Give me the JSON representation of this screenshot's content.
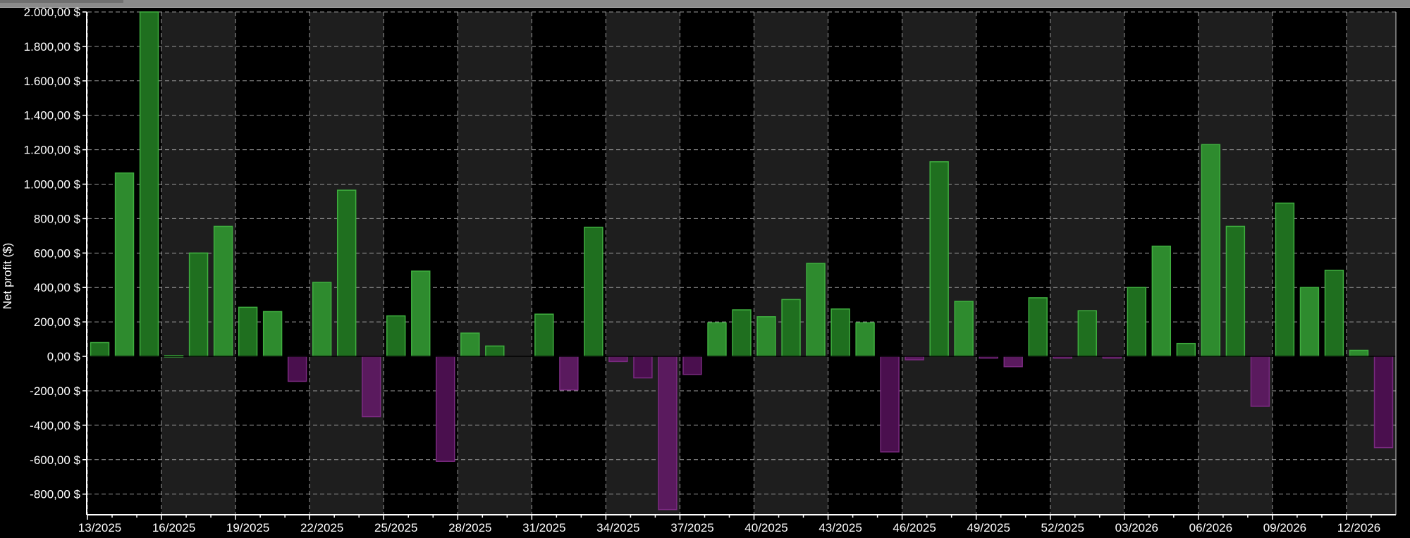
{
  "colors": {
    "background": "#000000",
    "band_alt": "#1e1e1e",
    "gridline": "#9a9a9a",
    "positive_fill": "#2e8b2e",
    "positive_fill_alt": "#1f6f1f",
    "positive_stroke": "#3fae3f",
    "negative_fill": "#5a1a5e",
    "negative_fill_alt": "#4a0f4e",
    "negative_stroke": "#7a2a80",
    "text": "#ffffff"
  },
  "chart_data": {
    "type": "bar",
    "title": "",
    "ylabel": "Net profit ($)",
    "xlabel": "",
    "ylim": [
      -920,
      2000
    ],
    "grid": true,
    "legend": "none",
    "yticks": [
      2000,
      1800,
      1600,
      1400,
      1200,
      1000,
      800,
      600,
      400,
      200,
      0,
      -200,
      -400,
      -600,
      -800
    ],
    "ytick_labels": [
      "2.000,00 $",
      "1.800,00 $",
      "1.600,00 $",
      "1.400,00 $",
      "1.200,00 $",
      "1.000,00 $",
      "800,00 $",
      "600,00 $",
      "400,00 $",
      "200,00 $",
      "0,00 $",
      "-200,00 $",
      "-400,00 $",
      "-600,00 $",
      "-800,00 $"
    ],
    "categories": [
      "13/2025",
      "14/2025",
      "15/2025",
      "16/2025",
      "17/2025",
      "18/2025",
      "19/2025",
      "20/2025",
      "21/2025",
      "22/2025",
      "23/2025",
      "24/2025",
      "25/2025",
      "26/2025",
      "27/2025",
      "28/2025",
      "29/2025",
      "30/2025",
      "31/2025",
      "32/2025",
      "33/2025",
      "34/2025",
      "35/2025",
      "36/2025",
      "37/2025",
      "38/2025",
      "39/2025",
      "40/2025",
      "41/2025",
      "42/2025",
      "43/2025",
      "44/2025",
      "45/2025",
      "46/2025",
      "47/2025",
      "48/2025",
      "49/2025",
      "50/2025",
      "51/2025",
      "52/2025",
      "01/2026",
      "02/2026",
      "03/2026",
      "04/2026",
      "05/2026",
      "06/2026",
      "07/2026",
      "08/2026",
      "09/2026",
      "10/2026",
      "11/2026",
      "12/2026",
      "13/2026"
    ],
    "xtick_labels": [
      "13/2025",
      "16/2025",
      "19/2025",
      "22/2025",
      "25/2025",
      "28/2025",
      "31/2025",
      "34/2025",
      "37/2025",
      "40/2025",
      "43/2025",
      "46/2025",
      "49/2025",
      "52/2025",
      "03/2026",
      "06/2026",
      "09/2026",
      "12/2026"
    ],
    "values": [
      80,
      1065,
      2000,
      5,
      600,
      755,
      285,
      260,
      -145,
      430,
      965,
      -350,
      235,
      495,
      -610,
      135,
      60,
      0,
      245,
      -195,
      750,
      -30,
      -125,
      -890,
      -105,
      195,
      270,
      230,
      330,
      540,
      275,
      195,
      -555,
      -20,
      1130,
      320,
      -10,
      -60,
      340,
      -10,
      265,
      -10,
      400,
      640,
      75,
      1230,
      755,
      -290,
      890,
      400,
      500,
      35,
      -530
    ]
  }
}
